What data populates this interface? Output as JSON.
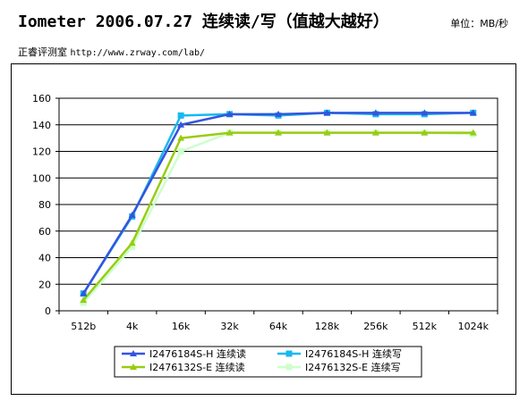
{
  "header": {
    "title": "Iometer 2006.07.27 连续读/写（值越大越好）",
    "unit": "单位：MB/秒",
    "source_name": "正睿评测室",
    "source_url": "http://www.zrway.com/lab/"
  },
  "chart_data": {
    "type": "line",
    "title": "",
    "xlabel": "",
    "ylabel": "",
    "categories": [
      "512b",
      "4k",
      "16k",
      "32k",
      "64k",
      "128k",
      "256k",
      "512k",
      "1024k"
    ],
    "ylim": [
      0,
      160
    ],
    "yticks": [
      0,
      20,
      40,
      60,
      80,
      100,
      120,
      140,
      160
    ],
    "grid": "horizontal",
    "legend_position": "bottom",
    "series": [
      {
        "name": "I2476184S-H 连续读",
        "color": "#3355dd",
        "marker": "triangle",
        "values": [
          13,
          72,
          140,
          148,
          148,
          149,
          149,
          149,
          149
        ]
      },
      {
        "name": "I2476184S-H 连续写",
        "color": "#19b8f0",
        "marker": "square",
        "values": [
          13,
          71,
          147,
          148,
          147,
          149,
          148,
          148,
          149
        ]
      },
      {
        "name": "I2476132S-E 连续读",
        "color": "#99cc11",
        "marker": "triangle",
        "values": [
          8,
          51,
          130,
          134,
          134,
          134,
          134,
          134,
          134
        ]
      },
      {
        "name": "I2476132S-E 连续写",
        "color": "#ccffcc",
        "marker": "square",
        "values": [
          6,
          48,
          120,
          134,
          134,
          134,
          134,
          134,
          133
        ]
      }
    ]
  }
}
